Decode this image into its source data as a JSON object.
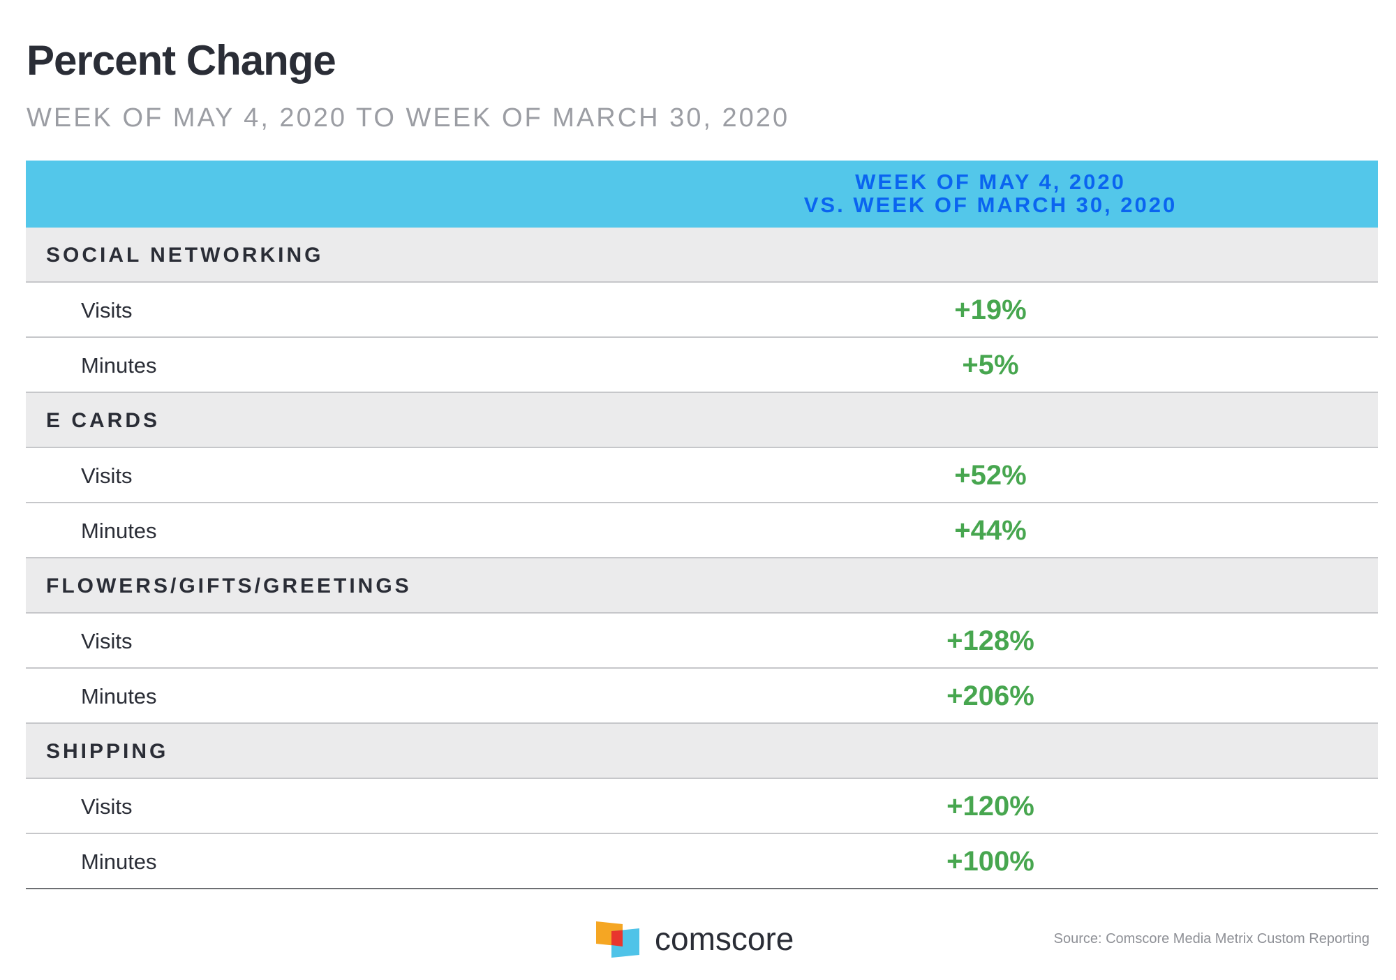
{
  "title": "Percent Change",
  "subtitle": "WEEK OF MAY 4, 2020 TO WEEK OF MARCH 30, 2020",
  "column_header": {
    "line1": "WEEK OF MAY 4, 2020",
    "line2": "VS. WEEK OF MARCH 30, 2020"
  },
  "chart_data": {
    "type": "table",
    "title": "Percent Change",
    "subtitle": "WEEK OF MAY 4, 2020 TO WEEK OF MARCH 30, 2020",
    "column": "WEEK OF MAY 4, 2020 VS. WEEK OF MARCH 30, 2020",
    "categories": [
      {
        "name": "SOCIAL NETWORKING",
        "rows": [
          {
            "metric": "Visits",
            "value": "+19%"
          },
          {
            "metric": "Minutes",
            "value": "+5%"
          }
        ]
      },
      {
        "name": "E CARDS",
        "rows": [
          {
            "metric": "Visits",
            "value": "+52%"
          },
          {
            "metric": "Minutes",
            "value": "+44%"
          }
        ]
      },
      {
        "name": "FLOWERS/GIFTS/GREETINGS",
        "rows": [
          {
            "metric": "Visits",
            "value": "+128%"
          },
          {
            "metric": "Minutes",
            "value": "+206%"
          }
        ]
      },
      {
        "name": "SHIPPING",
        "rows": [
          {
            "metric": "Visits",
            "value": "+120%"
          },
          {
            "metric": "Minutes",
            "value": "+100%"
          }
        ]
      }
    ]
  },
  "colors": {
    "header_bg": "#53c7ea",
    "header_text": "#0a64f0",
    "category_bg": "#ebebec",
    "value_green": "#47a64f"
  },
  "logo": {
    "text": "comscore",
    "icon": "comscore-logo-icon"
  },
  "source": "Source: Comscore Media Metrix Custom Reporting"
}
